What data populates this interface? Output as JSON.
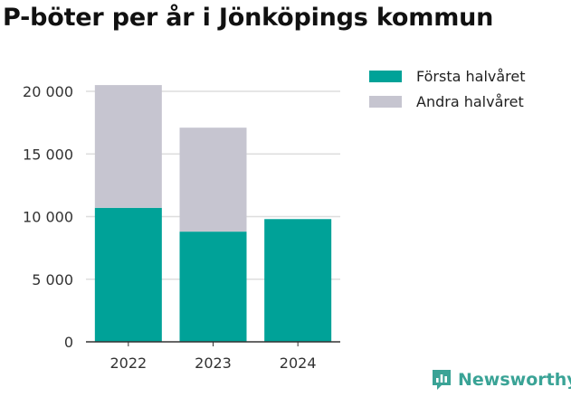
{
  "title": "P-böter per år i Jönköpings kommun",
  "chart_data": {
    "type": "bar",
    "stacked": true,
    "categories": [
      "2022",
      "2023",
      "2024"
    ],
    "series": [
      {
        "name": "Första halvåret",
        "values": [
          10700,
          8800,
          9800
        ],
        "color": "#00a298"
      },
      {
        "name": "Andra halvåret",
        "values": [
          9800,
          8300,
          null
        ],
        "color": "#c6c5d0"
      }
    ],
    "ylim": [
      0,
      20000
    ],
    "yticks": [
      0,
      5000,
      10000,
      15000,
      20000
    ],
    "ytick_labels": [
      "0",
      "5 000",
      "10 000",
      "15 000",
      "20 000"
    ],
    "grid": true,
    "legend": "top-right",
    "xlabel": "",
    "ylabel": ""
  },
  "logo": {
    "text": "Newsworthy",
    "icon": "newsworthy-logo-icon"
  }
}
